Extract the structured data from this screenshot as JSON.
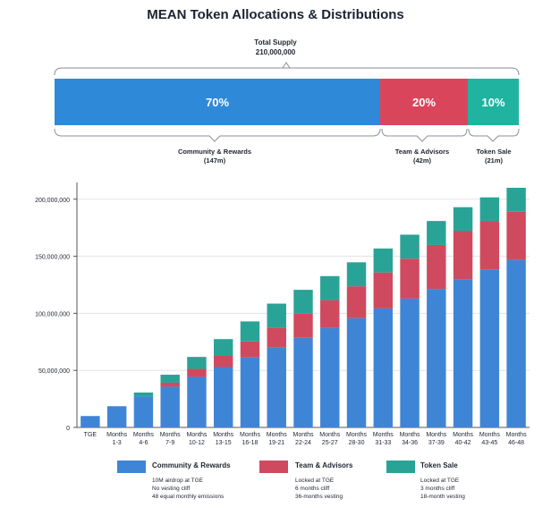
{
  "title": "MEAN Token Allocations & Distributions",
  "supply": {
    "label": "Total Supply",
    "value": "210,000,000"
  },
  "allocations": [
    {
      "pct": "70%",
      "name": "Community & Rewards",
      "amount": "(147m)",
      "color": "#2e89d9"
    },
    {
      "pct": "20%",
      "name": "Team & Advisors",
      "amount": "(42m)",
      "color": "#d9465c"
    },
    {
      "pct": "10%",
      "name": "Token Sale",
      "amount": "(21m)",
      "color": "#1fb3a0"
    }
  ],
  "legend": [
    {
      "name": "Community & Rewards",
      "color": "#3f85d6",
      "notes": [
        "10M airdrop at TGE",
        "No vesting cliff",
        "48 equal monthly emissions"
      ]
    },
    {
      "name": "Team & Advisors",
      "color": "#cf4a5e",
      "notes": [
        "Locked at TGE",
        "6 months cliff",
        "36-months vesting"
      ]
    },
    {
      "name": "Token Sale",
      "color": "#2aa397",
      "notes": [
        "Locked at TGE",
        "3 months cliff",
        "18-month vesting"
      ]
    }
  ],
  "chart_data": {
    "type": "bar",
    "stacked": true,
    "title": "MEAN Token Allocations & Distributions",
    "xlabel": "",
    "ylabel": "",
    "ylim": [
      0,
      210000000
    ],
    "yticks": [
      0,
      50000000,
      100000000,
      150000000,
      200000000
    ],
    "ytick_labels": [
      "0",
      "50,000,000",
      "100,000,000",
      "150,000,000",
      "200,000,000"
    ],
    "categories": [
      "TGE",
      "Months 1-3",
      "Months 4-6",
      "Months 7-9",
      "Months 10-12",
      "Months 13-15",
      "Months 16-18",
      "Months 19-21",
      "Months 22-24",
      "Months 25-27",
      "Months 28-30",
      "Months 31-33",
      "Months 34-36",
      "Months 37-39",
      "Months 40-42",
      "Months 43-45",
      "Months 46-48"
    ],
    "category_lines": [
      [
        "TGE"
      ],
      [
        "Months",
        "1-3"
      ],
      [
        "Months",
        "4-6"
      ],
      [
        "Months",
        "7-9"
      ],
      [
        "Months",
        "10-12"
      ],
      [
        "Months",
        "13-15"
      ],
      [
        "Months",
        "16-18"
      ],
      [
        "Months",
        "19-21"
      ],
      [
        "Months",
        "22-24"
      ],
      [
        "Months",
        "25-27"
      ],
      [
        "Months",
        "28-30"
      ],
      [
        "Months",
        "31-33"
      ],
      [
        "Months",
        "34-36"
      ],
      [
        "Months",
        "37-39"
      ],
      [
        "Months",
        "40-42"
      ],
      [
        "Months",
        "43-45"
      ],
      [
        "Months",
        "46-48"
      ]
    ],
    "series": [
      {
        "name": "Community & Rewards",
        "color": "#3f85d6",
        "values": [
          10000000,
          18600000,
          27100000,
          35700000,
          44300000,
          52900000,
          61400000,
          70000000,
          78600000,
          87100000,
          95700000,
          104300000,
          112900000,
          121400000,
          130000000,
          138600000,
          147000000
        ]
      },
      {
        "name": "Team & Advisors",
        "color": "#cf4a5e",
        "values": [
          0,
          0,
          0,
          3500000,
          7000000,
          10500000,
          14000000,
          17500000,
          21000000,
          24500000,
          28000000,
          31500000,
          35000000,
          38500000,
          42000000,
          42000000,
          42000000
        ]
      },
      {
        "name": "Token Sale",
        "color": "#2aa397",
        "values": [
          0,
          0,
          3500000,
          7000000,
          10500000,
          14000000,
          17500000,
          21000000,
          21000000,
          21000000,
          21000000,
          21000000,
          21000000,
          21000000,
          21000000,
          21000000,
          21000000
        ]
      }
    ],
    "legend_position": "bottom"
  }
}
